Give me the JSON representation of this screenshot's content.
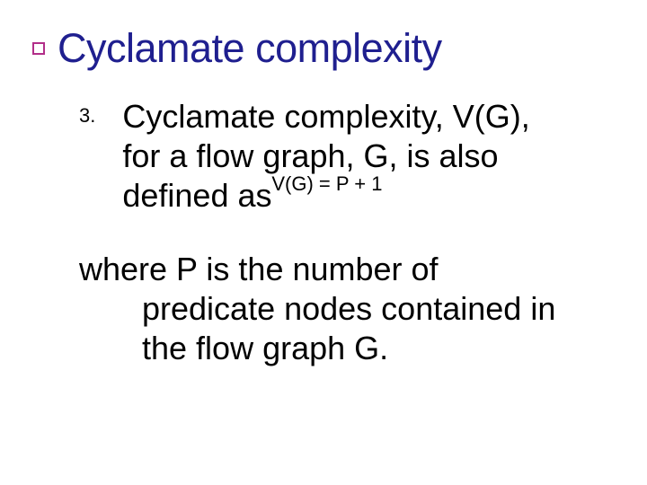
{
  "title": "Cyclamate complexity",
  "accent_color": "#b22e89",
  "title_color": "#1f1f8f",
  "list_number": "3.",
  "item_line1": "Cyclamate complexity, V(G),",
  "item_line2": "for a flow graph, G, is also",
  "item_line3": "defined as",
  "formula": "V(G) = P + 1",
  "where_line1": "where P is the number of",
  "where_line2": "predicate nodes contained in",
  "where_line3": "the flow graph G.",
  "body_text_color": "#000000",
  "background_color": "#ffffff",
  "title_fontsize": 45,
  "body_fontsize": 36,
  "formula_fontsize": 22,
  "list_number_fontsize": 22
}
